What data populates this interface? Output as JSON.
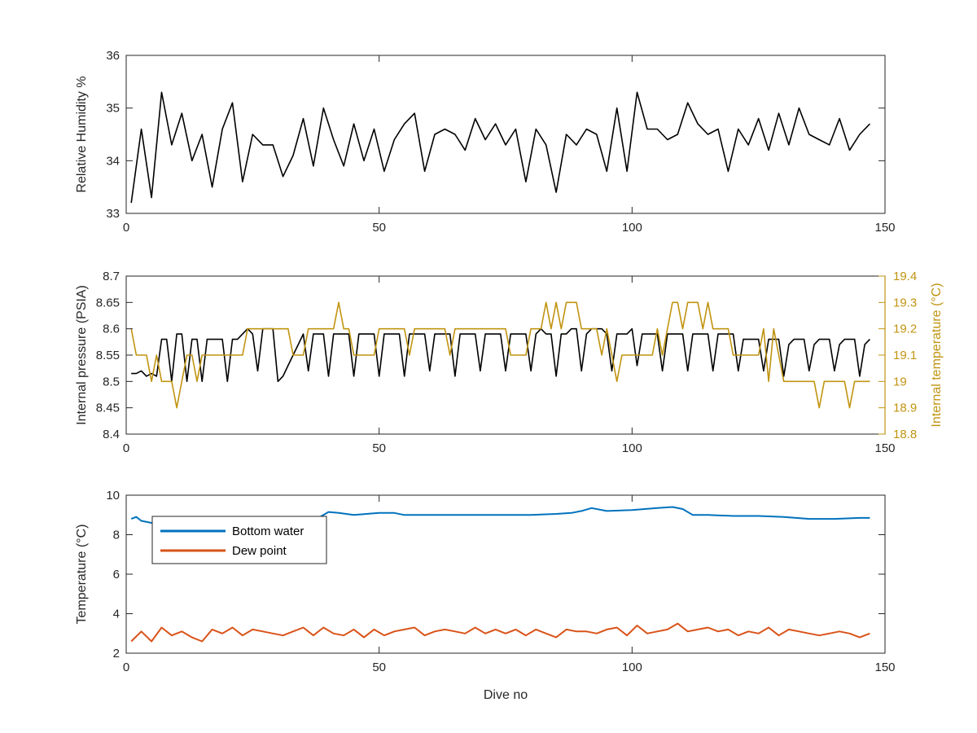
{
  "chart_data": [
    {
      "type": "line",
      "ylabel": "Relative Humidity %",
      "xlim": [
        0,
        150
      ],
      "ylim": [
        33,
        36
      ],
      "xticks": [
        0,
        50,
        100,
        150
      ],
      "yticks": [
        33,
        34,
        35,
        36
      ],
      "series": [
        {
          "color": "#000000",
          "x": [
            1,
            3,
            5,
            7,
            9,
            11,
            13,
            15,
            17,
            19,
            21,
            23,
            25,
            27,
            29,
            31,
            33,
            35,
            37,
            39,
            41,
            43,
            45,
            47,
            49,
            51,
            53,
            55,
            57,
            59,
            61,
            63,
            65,
            67,
            69,
            71,
            73,
            75,
            77,
            79,
            81,
            83,
            85,
            87,
            89,
            91,
            93,
            95,
            97,
            99,
            101,
            103,
            105,
            107,
            109,
            111,
            113,
            115,
            117,
            119,
            121,
            123,
            125,
            127,
            129,
            131,
            133,
            135,
            137,
            139,
            141,
            143,
            145,
            147
          ],
          "y": [
            33.2,
            34.6,
            33.3,
            35.3,
            34.3,
            34.9,
            34.0,
            34.5,
            33.5,
            34.6,
            35.1,
            33.6,
            34.5,
            34.3,
            34.3,
            33.7,
            34.1,
            34.8,
            33.9,
            35.0,
            34.4,
            33.9,
            34.7,
            34.0,
            34.6,
            33.8,
            34.4,
            34.7,
            34.9,
            33.8,
            34.5,
            34.6,
            34.5,
            34.2,
            34.8,
            34.4,
            34.7,
            34.3,
            34.6,
            33.6,
            34.6,
            34.3,
            33.4,
            34.5,
            34.3,
            34.6,
            34.5,
            33.8,
            35.0,
            33.8,
            35.3,
            34.6,
            34.6,
            34.4,
            34.5,
            35.1,
            34.7,
            34.5,
            34.6,
            33.8,
            34.6,
            34.3,
            34.8,
            34.2,
            34.9,
            34.3,
            35.0,
            34.5,
            34.4,
            34.3,
            34.8,
            34.2,
            34.5,
            34.7
          ]
        }
      ]
    },
    {
      "type": "line",
      "ylabel": "Internal pressure (PSIA)",
      "y2label": "Internal temperature (°C)",
      "xlim": [
        0,
        150
      ],
      "ylim": [
        8.4,
        8.7
      ],
      "y2lim": [
        18.8,
        19.4
      ],
      "xticks": [
        0,
        50,
        100,
        150
      ],
      "yticks": [
        8.4,
        8.45,
        8.5,
        8.55,
        8.6,
        8.65,
        8.7
      ],
      "y2ticks": [
        18.8,
        18.9,
        19,
        19.1,
        19.2,
        19.3,
        19.4
      ],
      "series": [
        {
          "axis": "left",
          "color": "#000000",
          "x": [
            1,
            2,
            3,
            4,
            5,
            6,
            7,
            8,
            9,
            10,
            11,
            12,
            13,
            14,
            15,
            16,
            17,
            18,
            19,
            20,
            21,
            22,
            23,
            24,
            25,
            26,
            27,
            28,
            29,
            30,
            31,
            32,
            33,
            34,
            35,
            36,
            37,
            38,
            39,
            40,
            41,
            42,
            43,
            44,
            45,
            46,
            47,
            48,
            49,
            50,
            51,
            52,
            53,
            54,
            55,
            56,
            57,
            58,
            59,
            60,
            61,
            62,
            63,
            64,
            65,
            66,
            67,
            68,
            69,
            70,
            71,
            72,
            73,
            74,
            75,
            76,
            77,
            78,
            79,
            80,
            81,
            82,
            83,
            84,
            85,
            86,
            87,
            88,
            89,
            90,
            91,
            92,
            93,
            94,
            95,
            96,
            97,
            98,
            99,
            100,
            101,
            102,
            103,
            104,
            105,
            106,
            107,
            108,
            109,
            110,
            111,
            112,
            113,
            114,
            115,
            116,
            117,
            118,
            119,
            120,
            121,
            122,
            123,
            124,
            125,
            126,
            127,
            128,
            129,
            130,
            131,
            132,
            133,
            134,
            135,
            136,
            137,
            138,
            139,
            140,
            141,
            142,
            143,
            144,
            145,
            146,
            147
          ],
          "y": [
            8.515,
            8.515,
            8.52,
            8.51,
            8.515,
            8.51,
            8.58,
            8.58,
            8.5,
            8.59,
            8.59,
            8.5,
            8.58,
            8.58,
            8.5,
            8.58,
            8.58,
            8.58,
            8.58,
            8.5,
            8.58,
            8.58,
            8.59,
            8.6,
            8.59,
            8.52,
            8.6,
            8.6,
            8.6,
            8.5,
            8.51,
            8.53,
            8.55,
            8.57,
            8.59,
            8.52,
            8.59,
            8.59,
            8.59,
            8.51,
            8.59,
            8.59,
            8.59,
            8.59,
            8.51,
            8.59,
            8.59,
            8.59,
            8.59,
            8.51,
            8.59,
            8.59,
            8.59,
            8.59,
            8.51,
            8.59,
            8.59,
            8.59,
            8.59,
            8.52,
            8.59,
            8.59,
            8.59,
            8.59,
            8.51,
            8.59,
            8.59,
            8.59,
            8.59,
            8.52,
            8.59,
            8.59,
            8.59,
            8.59,
            8.52,
            8.59,
            8.59,
            8.59,
            8.59,
            8.52,
            8.59,
            8.6,
            8.59,
            8.59,
            8.51,
            8.59,
            8.59,
            8.6,
            8.6,
            8.52,
            8.59,
            8.6,
            8.6,
            8.6,
            8.59,
            8.52,
            8.59,
            8.59,
            8.59,
            8.6,
            8.53,
            8.59,
            8.59,
            8.59,
            8.59,
            8.52,
            8.59,
            8.59,
            8.59,
            8.59,
            8.52,
            8.59,
            8.59,
            8.59,
            8.59,
            8.52,
            8.59,
            8.59,
            8.59,
            8.59,
            8.52,
            8.58,
            8.58,
            8.58,
            8.58,
            8.52,
            8.58,
            8.58,
            8.58,
            8.51,
            8.57,
            8.58,
            8.58,
            8.58,
            8.52,
            8.57,
            8.58,
            8.58,
            8.58,
            8.52,
            8.57,
            8.58,
            8.58,
            8.58,
            8.51,
            8.57,
            8.58
          ]
        },
        {
          "axis": "right",
          "color": "#c19411",
          "x": [
            1,
            2,
            3,
            4,
            5,
            6,
            7,
            8,
            9,
            10,
            11,
            12,
            13,
            14,
            15,
            16,
            17,
            18,
            19,
            20,
            21,
            22,
            23,
            24,
            25,
            26,
            27,
            28,
            29,
            30,
            31,
            32,
            33,
            34,
            35,
            36,
            37,
            38,
            39,
            40,
            41,
            42,
            43,
            44,
            45,
            46,
            47,
            48,
            49,
            50,
            51,
            52,
            53,
            54,
            55,
            56,
            57,
            58,
            59,
            60,
            61,
            62,
            63,
            64,
            65,
            66,
            67,
            68,
            69,
            70,
            71,
            72,
            73,
            74,
            75,
            76,
            77,
            78,
            79,
            80,
            81,
            82,
            83,
            84,
            85,
            86,
            87,
            88,
            89,
            90,
            91,
            92,
            93,
            94,
            95,
            96,
            97,
            98,
            99,
            100,
            101,
            102,
            103,
            104,
            105,
            106,
            107,
            108,
            109,
            110,
            111,
            112,
            113,
            114,
            115,
            116,
            117,
            118,
            119,
            120,
            121,
            122,
            123,
            124,
            125,
            126,
            127,
            128,
            129,
            130,
            131,
            132,
            133,
            134,
            135,
            136,
            137,
            138,
            139,
            140,
            141,
            142,
            143,
            144,
            145,
            146,
            147
          ],
          "y": [
            19.2,
            19.1,
            19.1,
            19.1,
            19.0,
            19.1,
            19.0,
            19.0,
            19.0,
            18.9,
            19.0,
            19.1,
            19.1,
            19.0,
            19.1,
            19.1,
            19.1,
            19.1,
            19.1,
            19.1,
            19.1,
            19.1,
            19.1,
            19.2,
            19.2,
            19.2,
            19.2,
            19.2,
            19.2,
            19.2,
            19.2,
            19.2,
            19.1,
            19.1,
            19.1,
            19.2,
            19.2,
            19.2,
            19.2,
            19.2,
            19.2,
            19.3,
            19.2,
            19.2,
            19.1,
            19.1,
            19.1,
            19.1,
            19.1,
            19.2,
            19.2,
            19.2,
            19.2,
            19.2,
            19.2,
            19.1,
            19.2,
            19.2,
            19.2,
            19.2,
            19.2,
            19.2,
            19.2,
            19.1,
            19.2,
            19.2,
            19.2,
            19.2,
            19.2,
            19.2,
            19.2,
            19.2,
            19.2,
            19.2,
            19.2,
            19.1,
            19.1,
            19.1,
            19.1,
            19.2,
            19.2,
            19.2,
            19.3,
            19.2,
            19.3,
            19.2,
            19.3,
            19.3,
            19.3,
            19.2,
            19.2,
            19.2,
            19.2,
            19.1,
            19.2,
            19.1,
            19.0,
            19.1,
            19.1,
            19.1,
            19.1,
            19.1,
            19.1,
            19.1,
            19.2,
            19.1,
            19.2,
            19.3,
            19.3,
            19.2,
            19.3,
            19.3,
            19.3,
            19.2,
            19.3,
            19.2,
            19.2,
            19.2,
            19.2,
            19.1,
            19.1,
            19.1,
            19.1,
            19.1,
            19.1,
            19.2,
            19.0,
            19.2,
            19.1,
            19.0,
            19.0,
            19.0,
            19.0,
            19.0,
            19.0,
            19.0,
            18.9,
            19.0,
            19.0,
            19.0,
            19.0,
            19.0,
            18.9,
            19.0,
            19.0,
            19.0,
            19.0
          ]
        }
      ]
    },
    {
      "type": "line",
      "ylabel": "Temperature (°C)",
      "xlabel": "Dive no",
      "xlim": [
        0,
        150
      ],
      "ylim": [
        2,
        10
      ],
      "xticks": [
        0,
        50,
        100,
        150
      ],
      "yticks": [
        2,
        4,
        6,
        8,
        10
      ],
      "legend_position": "top-left",
      "series": [
        {
          "name": "Bottom water",
          "color": "#0072bd",
          "x": [
            1,
            2,
            3,
            5,
            10,
            15,
            20,
            25,
            28,
            30,
            35,
            38,
            40,
            42,
            45,
            50,
            53,
            55,
            60,
            65,
            70,
            75,
            80,
            85,
            88,
            90,
            92,
            95,
            100,
            105,
            108,
            110,
            112,
            115,
            120,
            125,
            130,
            135,
            140,
            145,
            147
          ],
          "y": [
            8.8,
            8.9,
            8.7,
            8.6,
            8.65,
            8.7,
            8.7,
            8.75,
            8.85,
            8.85,
            8.8,
            8.85,
            9.15,
            9.1,
            9.0,
            9.1,
            9.1,
            9.0,
            9.0,
            9.0,
            9.0,
            9.0,
            9.0,
            9.05,
            9.1,
            9.2,
            9.35,
            9.2,
            9.25,
            9.35,
            9.4,
            9.3,
            9.0,
            9.0,
            8.95,
            8.95,
            8.9,
            8.8,
            8.8,
            8.85,
            8.85
          ]
        },
        {
          "name": "Dew point",
          "color": "#d95319",
          "x": [
            1,
            3,
            5,
            7,
            9,
            11,
            13,
            15,
            17,
            19,
            21,
            23,
            25,
            27,
            29,
            31,
            33,
            35,
            37,
            39,
            41,
            43,
            45,
            47,
            49,
            51,
            53,
            55,
            57,
            59,
            61,
            63,
            65,
            67,
            69,
            71,
            73,
            75,
            77,
            79,
            81,
            83,
            85,
            87,
            89,
            91,
            93,
            95,
            97,
            99,
            101,
            103,
            105,
            107,
            109,
            111,
            113,
            115,
            117,
            119,
            121,
            123,
            125,
            127,
            129,
            131,
            133,
            135,
            137,
            139,
            141,
            143,
            145,
            147
          ],
          "y": [
            2.6,
            3.1,
            2.6,
            3.3,
            2.9,
            3.1,
            2.8,
            2.6,
            3.2,
            3.0,
            3.3,
            2.9,
            3.2,
            3.1,
            3.0,
            2.9,
            3.1,
            3.3,
            2.9,
            3.3,
            3.0,
            2.9,
            3.2,
            2.8,
            3.2,
            2.9,
            3.1,
            3.2,
            3.3,
            2.9,
            3.1,
            3.2,
            3.1,
            3.0,
            3.3,
            3.0,
            3.2,
            3.0,
            3.2,
            2.9,
            3.2,
            3.0,
            2.8,
            3.2,
            3.1,
            3.1,
            3.0,
            3.2,
            3.3,
            2.9,
            3.4,
            3.0,
            3.1,
            3.2,
            3.5,
            3.1,
            3.2,
            3.3,
            3.1,
            3.2,
            2.9,
            3.1,
            3.0,
            3.3,
            2.9,
            3.2,
            3.1,
            3.0,
            2.9,
            3.0,
            3.1,
            3.0,
            2.8,
            3.0
          ]
        }
      ]
    }
  ]
}
